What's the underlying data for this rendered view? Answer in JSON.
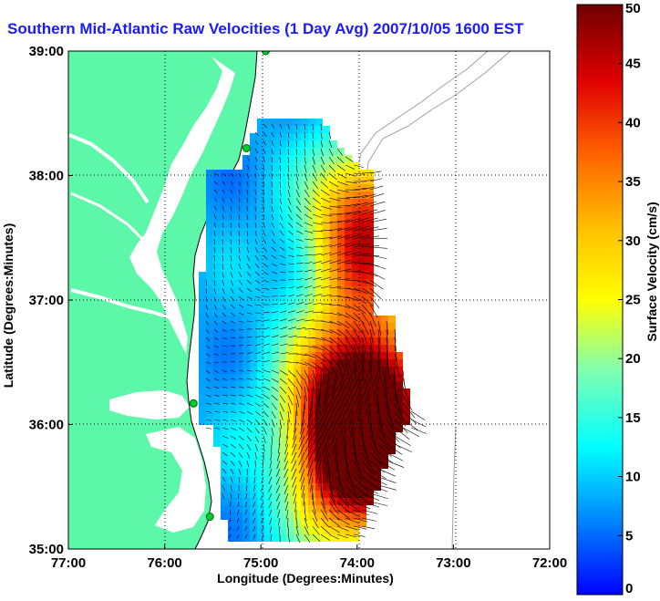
{
  "title": "Southern Mid-Atlantic Raw Velocities (1 Day Avg) 2007/10/05 1600 EST",
  "chart_data": {
    "type": "heatmap",
    "title": "Southern Mid-Atlantic Raw Velocities (1 Day Avg) 2007/10/05 1600 EST",
    "xlabel": "Longitude (Degrees:Minutes)",
    "ylabel": "Latitude (Degrees:Minutes)",
    "xlim": [
      -77,
      -72
    ],
    "ylim": [
      35,
      39
    ],
    "x_ticks": [
      "77:00",
      "76:00",
      "75:00",
      "74:00",
      "73:00",
      "72:00"
    ],
    "y_ticks": [
      "39:00",
      "38:00",
      "37:00",
      "36:00",
      "35:00"
    ],
    "grid": "dotted",
    "colorbar": {
      "label": "Surface Velocity (cm/s)",
      "range": [
        0,
        50
      ],
      "ticks": [
        "50",
        "45",
        "40",
        "35",
        "30",
        "25",
        "20",
        "15",
        "10",
        "5",
        "0"
      ]
    },
    "speed_field": {
      "region_lon": [
        -75.6,
        -73.8
      ],
      "region_lat": [
        35.1,
        38.4
      ],
      "description_levels": {
        "northern_offshore_peak": 35,
        "central_coastal": 8,
        "southern_offshore_peak": 50
      }
    },
    "stations": [
      {
        "lon": -74.95,
        "lat": 39.0
      },
      {
        "lon": -75.15,
        "lat": 38.22
      },
      {
        "lon": -75.7,
        "lat": 36.17
      },
      {
        "lon": -75.53,
        "lat": 35.26
      }
    ]
  },
  "colors": {
    "land": "#5cf7a8",
    "title": "#1a1aff",
    "station": "#00cc33"
  }
}
